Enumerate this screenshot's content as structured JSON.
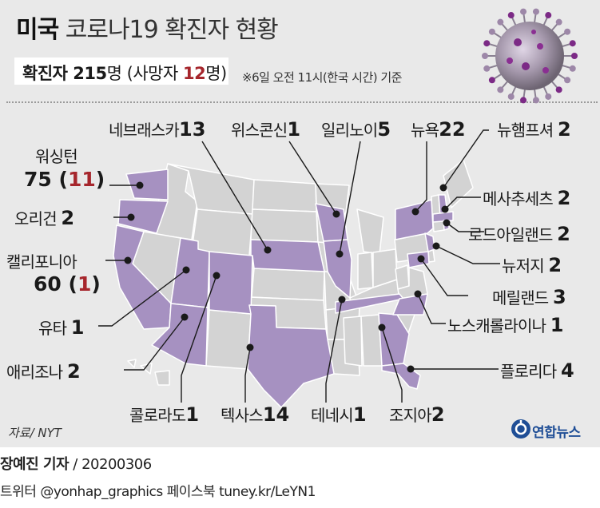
{
  "header": {
    "title_bold": "미국",
    "title_rest": " 코로나19 확진자 현황",
    "summary_label": "확진자 ",
    "summary_total": "215",
    "summary_unit": "명 (사망자 ",
    "summary_deaths": "12",
    "summary_close": "명)",
    "basis": "※6일 오전 11시(한국 시간) 기준"
  },
  "map_data": {
    "type": "choropleth",
    "region": "미국 (본토 48개 주)",
    "highlight_color": "#a691c1",
    "base_color": "#d3d3d3",
    "states": [
      {
        "name": "워싱턴",
        "cases": 75,
        "deaths": 11
      },
      {
        "name": "오리건",
        "cases": 2
      },
      {
        "name": "캘리포니아",
        "cases": 60,
        "deaths": 1
      },
      {
        "name": "유타",
        "cases": 1
      },
      {
        "name": "애리조나",
        "cases": 2
      },
      {
        "name": "콜로라도",
        "cases": 1
      },
      {
        "name": "텍사스",
        "cases": 14
      },
      {
        "name": "테네시",
        "cases": 1
      },
      {
        "name": "조지아",
        "cases": 2
      },
      {
        "name": "네브래스카",
        "cases": 13
      },
      {
        "name": "위스콘신",
        "cases": 1
      },
      {
        "name": "일리노이",
        "cases": 5
      },
      {
        "name": "뉴욕",
        "cases": 22
      },
      {
        "name": "뉴햄프셔",
        "cases": 2
      },
      {
        "name": "메사추세츠",
        "cases": 2
      },
      {
        "name": "로드아일랜드",
        "cases": 2
      },
      {
        "name": "뉴저지",
        "cases": 2
      },
      {
        "name": "메릴랜드",
        "cases": 3
      },
      {
        "name": "노스캐롤라이나",
        "cases": 1
      },
      {
        "name": "플로리다",
        "cases": 4
      }
    ]
  },
  "labels": {
    "wa_name": "워싱턴",
    "wa_num": "75",
    "wa_deaths_open": " (",
    "wa_deaths": "11",
    "wa_deaths_close": ")",
    "or_name": "오리건 ",
    "or_num": "2",
    "ca_name": "캘리포니아",
    "ca_num": "60",
    "ca_deaths_open": " (",
    "ca_deaths": "1",
    "ca_deaths_close": ")",
    "ut_name": "유타 ",
    "ut_num": "1",
    "az_name": "애리조나 ",
    "az_num": "2",
    "co_name": "콜로라도",
    "co_num": "1",
    "tx_name": "텍사스",
    "tx_num": "14",
    "tn_name": "테네시",
    "tn_num": "1",
    "ga_name": "조지아",
    "ga_num": "2",
    "ne_name": "네브래스카",
    "ne_num": "13",
    "wi_name": "위스콘신",
    "wi_num": "1",
    "il_name": "일리노이",
    "il_num": "5",
    "ny_name": "뉴욕",
    "ny_num": "22",
    "nh_name": "뉴햄프셔 ",
    "nh_num": "2",
    "ma_name": "메사추세츠 ",
    "ma_num": "2",
    "ri_name": "로드아일랜드 ",
    "ri_num": "2",
    "nj_name": "뉴저지 ",
    "nj_num": "2",
    "md_name": "메릴랜드 ",
    "md_num": "3",
    "nc_name": "노스캐롤라이나 ",
    "nc_num": "1",
    "fl_name": "플로리다 ",
    "fl_num": "4"
  },
  "footer": {
    "source": "자료/ NYT",
    "logo_text": "연합뉴스",
    "author": "장예진 기자",
    "date": " / 20200306",
    "social": "트위터 @yonhap_graphics  페이스북 tuney.kr/LeYN1"
  }
}
